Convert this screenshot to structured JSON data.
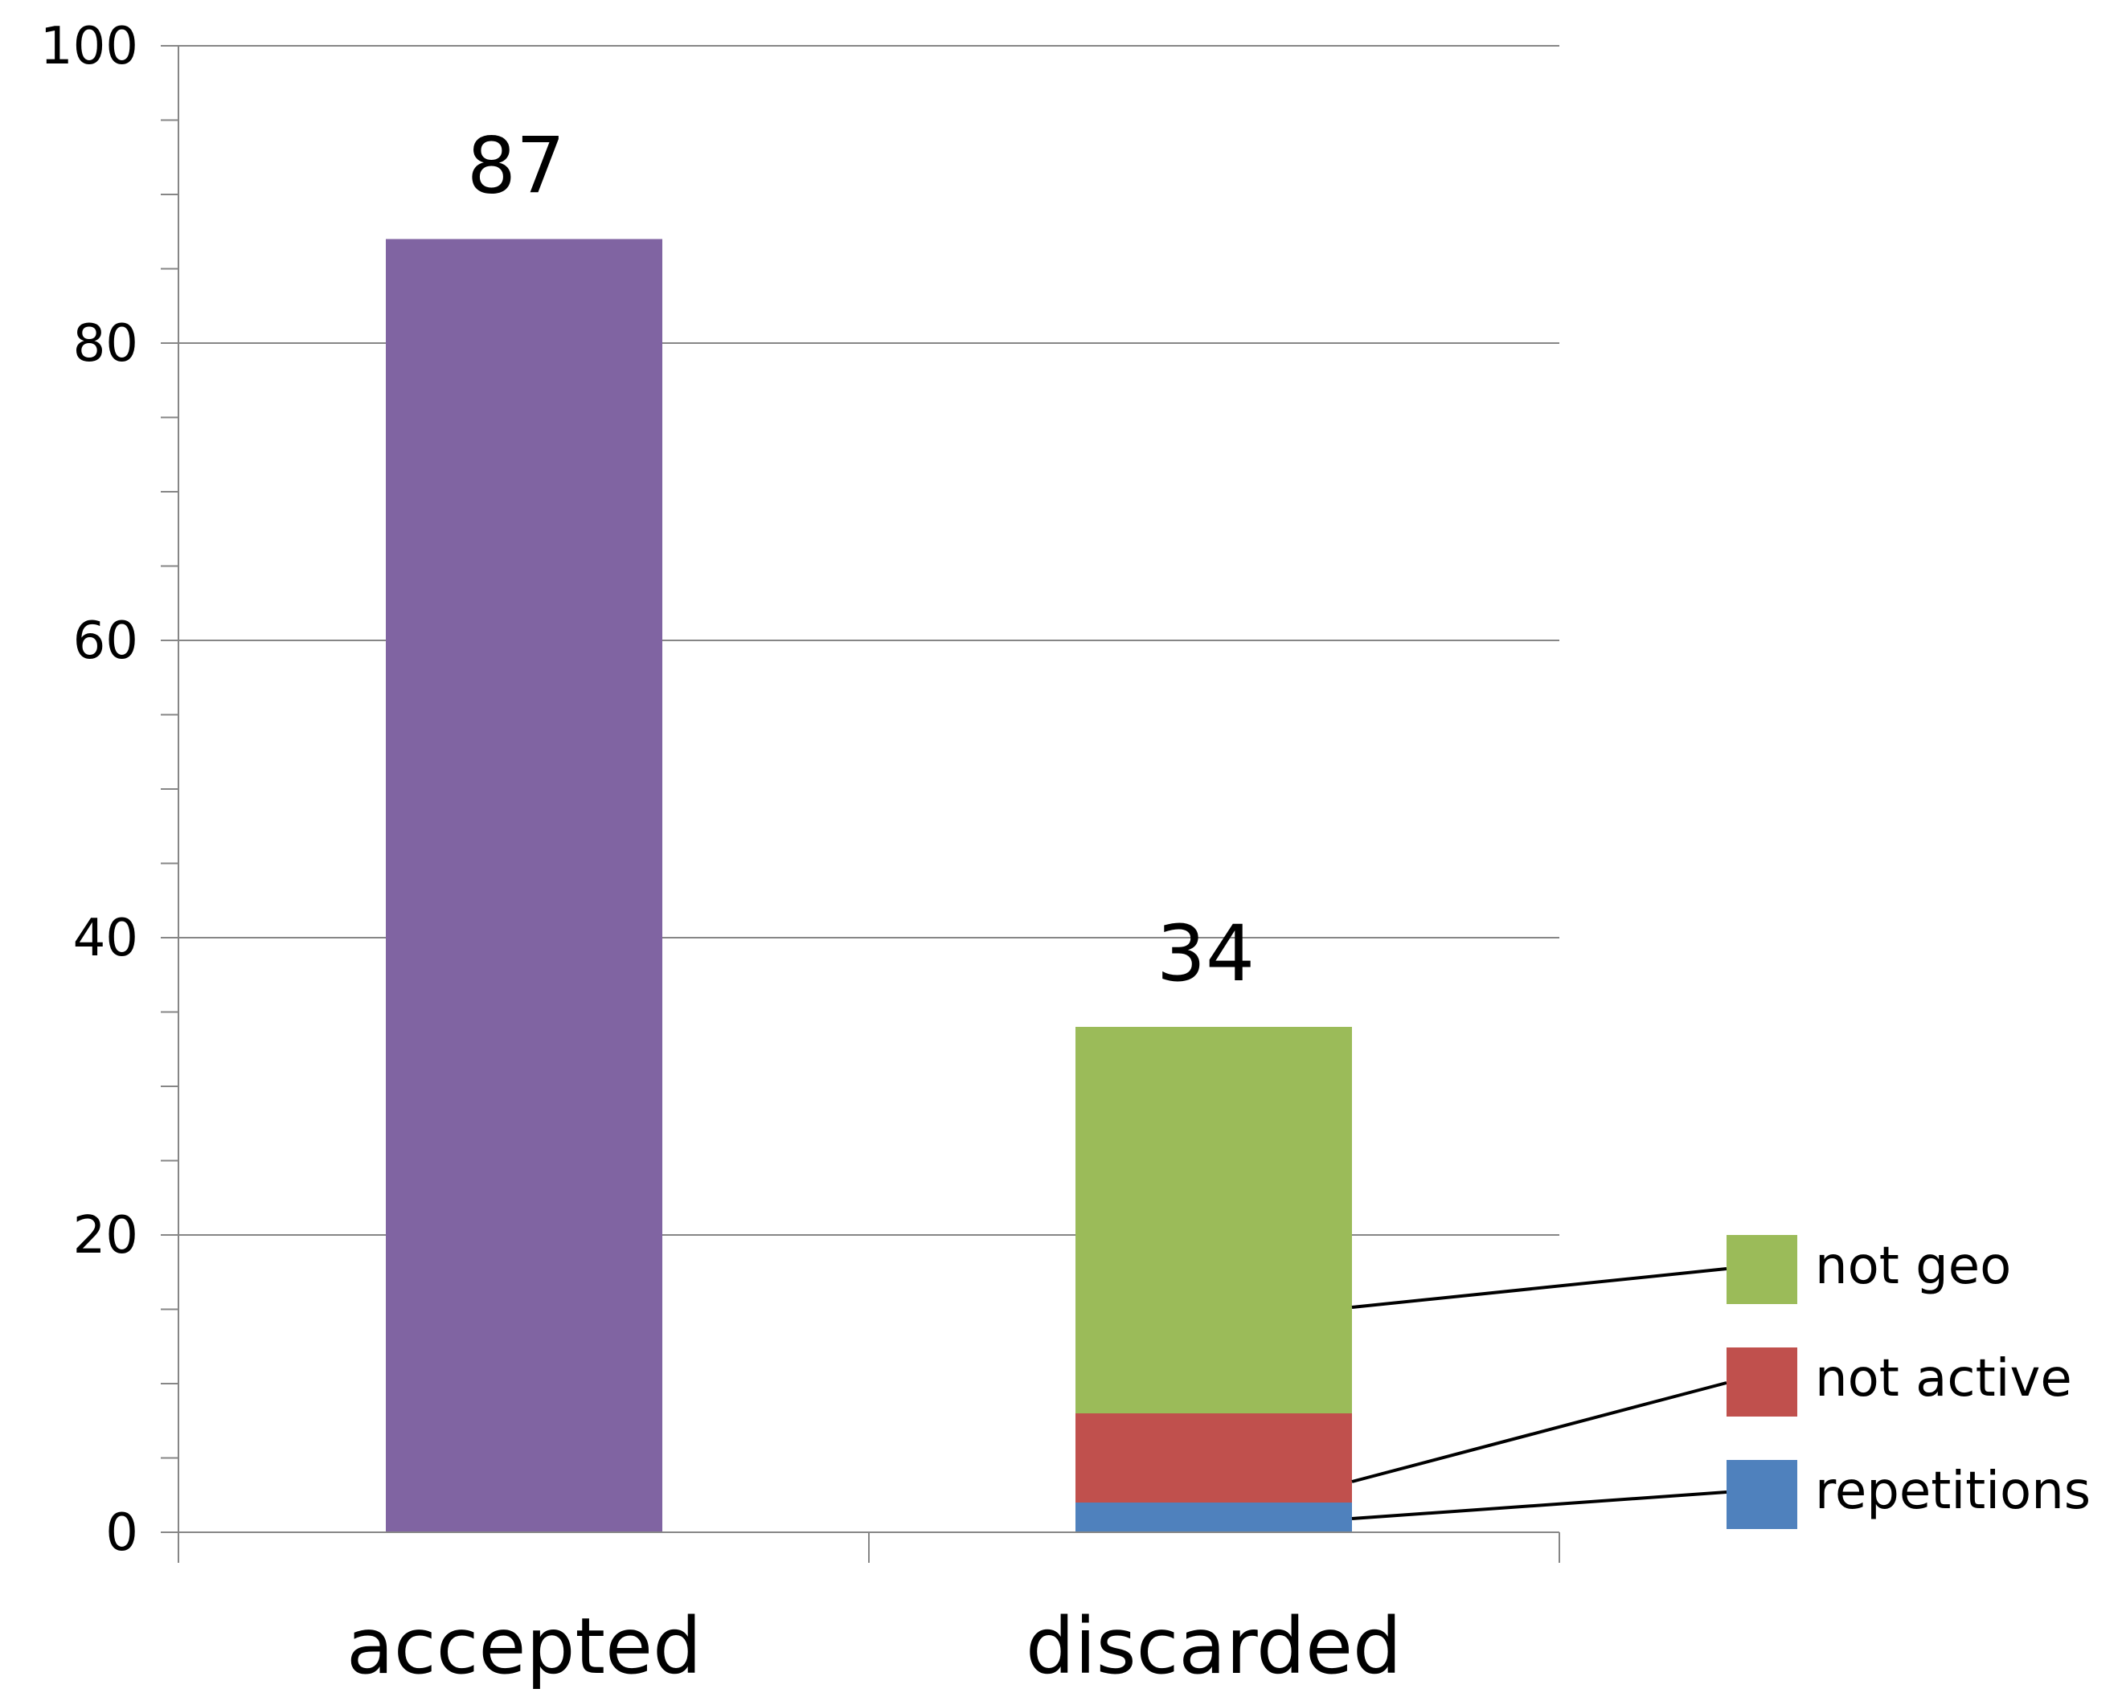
{
  "chart_data": {
    "type": "bar",
    "stacked": true,
    "categories": [
      "accepted",
      "discarded"
    ],
    "ylim": [
      0,
      100
    ],
    "yticks": [
      "0",
      "20",
      "40",
      "60",
      "80",
      "100"
    ],
    "grid": true,
    "legend_position": "right",
    "totals": [
      "87",
      "34"
    ],
    "series": [
      {
        "category": "accepted",
        "values": [
          87,
          0
        ],
        "color": "#8064A2"
      },
      {
        "name": "repetitions",
        "values": [
          0,
          2
        ],
        "color": "#4F81BD"
      },
      {
        "name": "not active",
        "values": [
          0,
          6
        ],
        "color": "#C0504D"
      },
      {
        "name": "not geo",
        "values": [
          0,
          26
        ],
        "color": "#9BBB59"
      }
    ]
  }
}
